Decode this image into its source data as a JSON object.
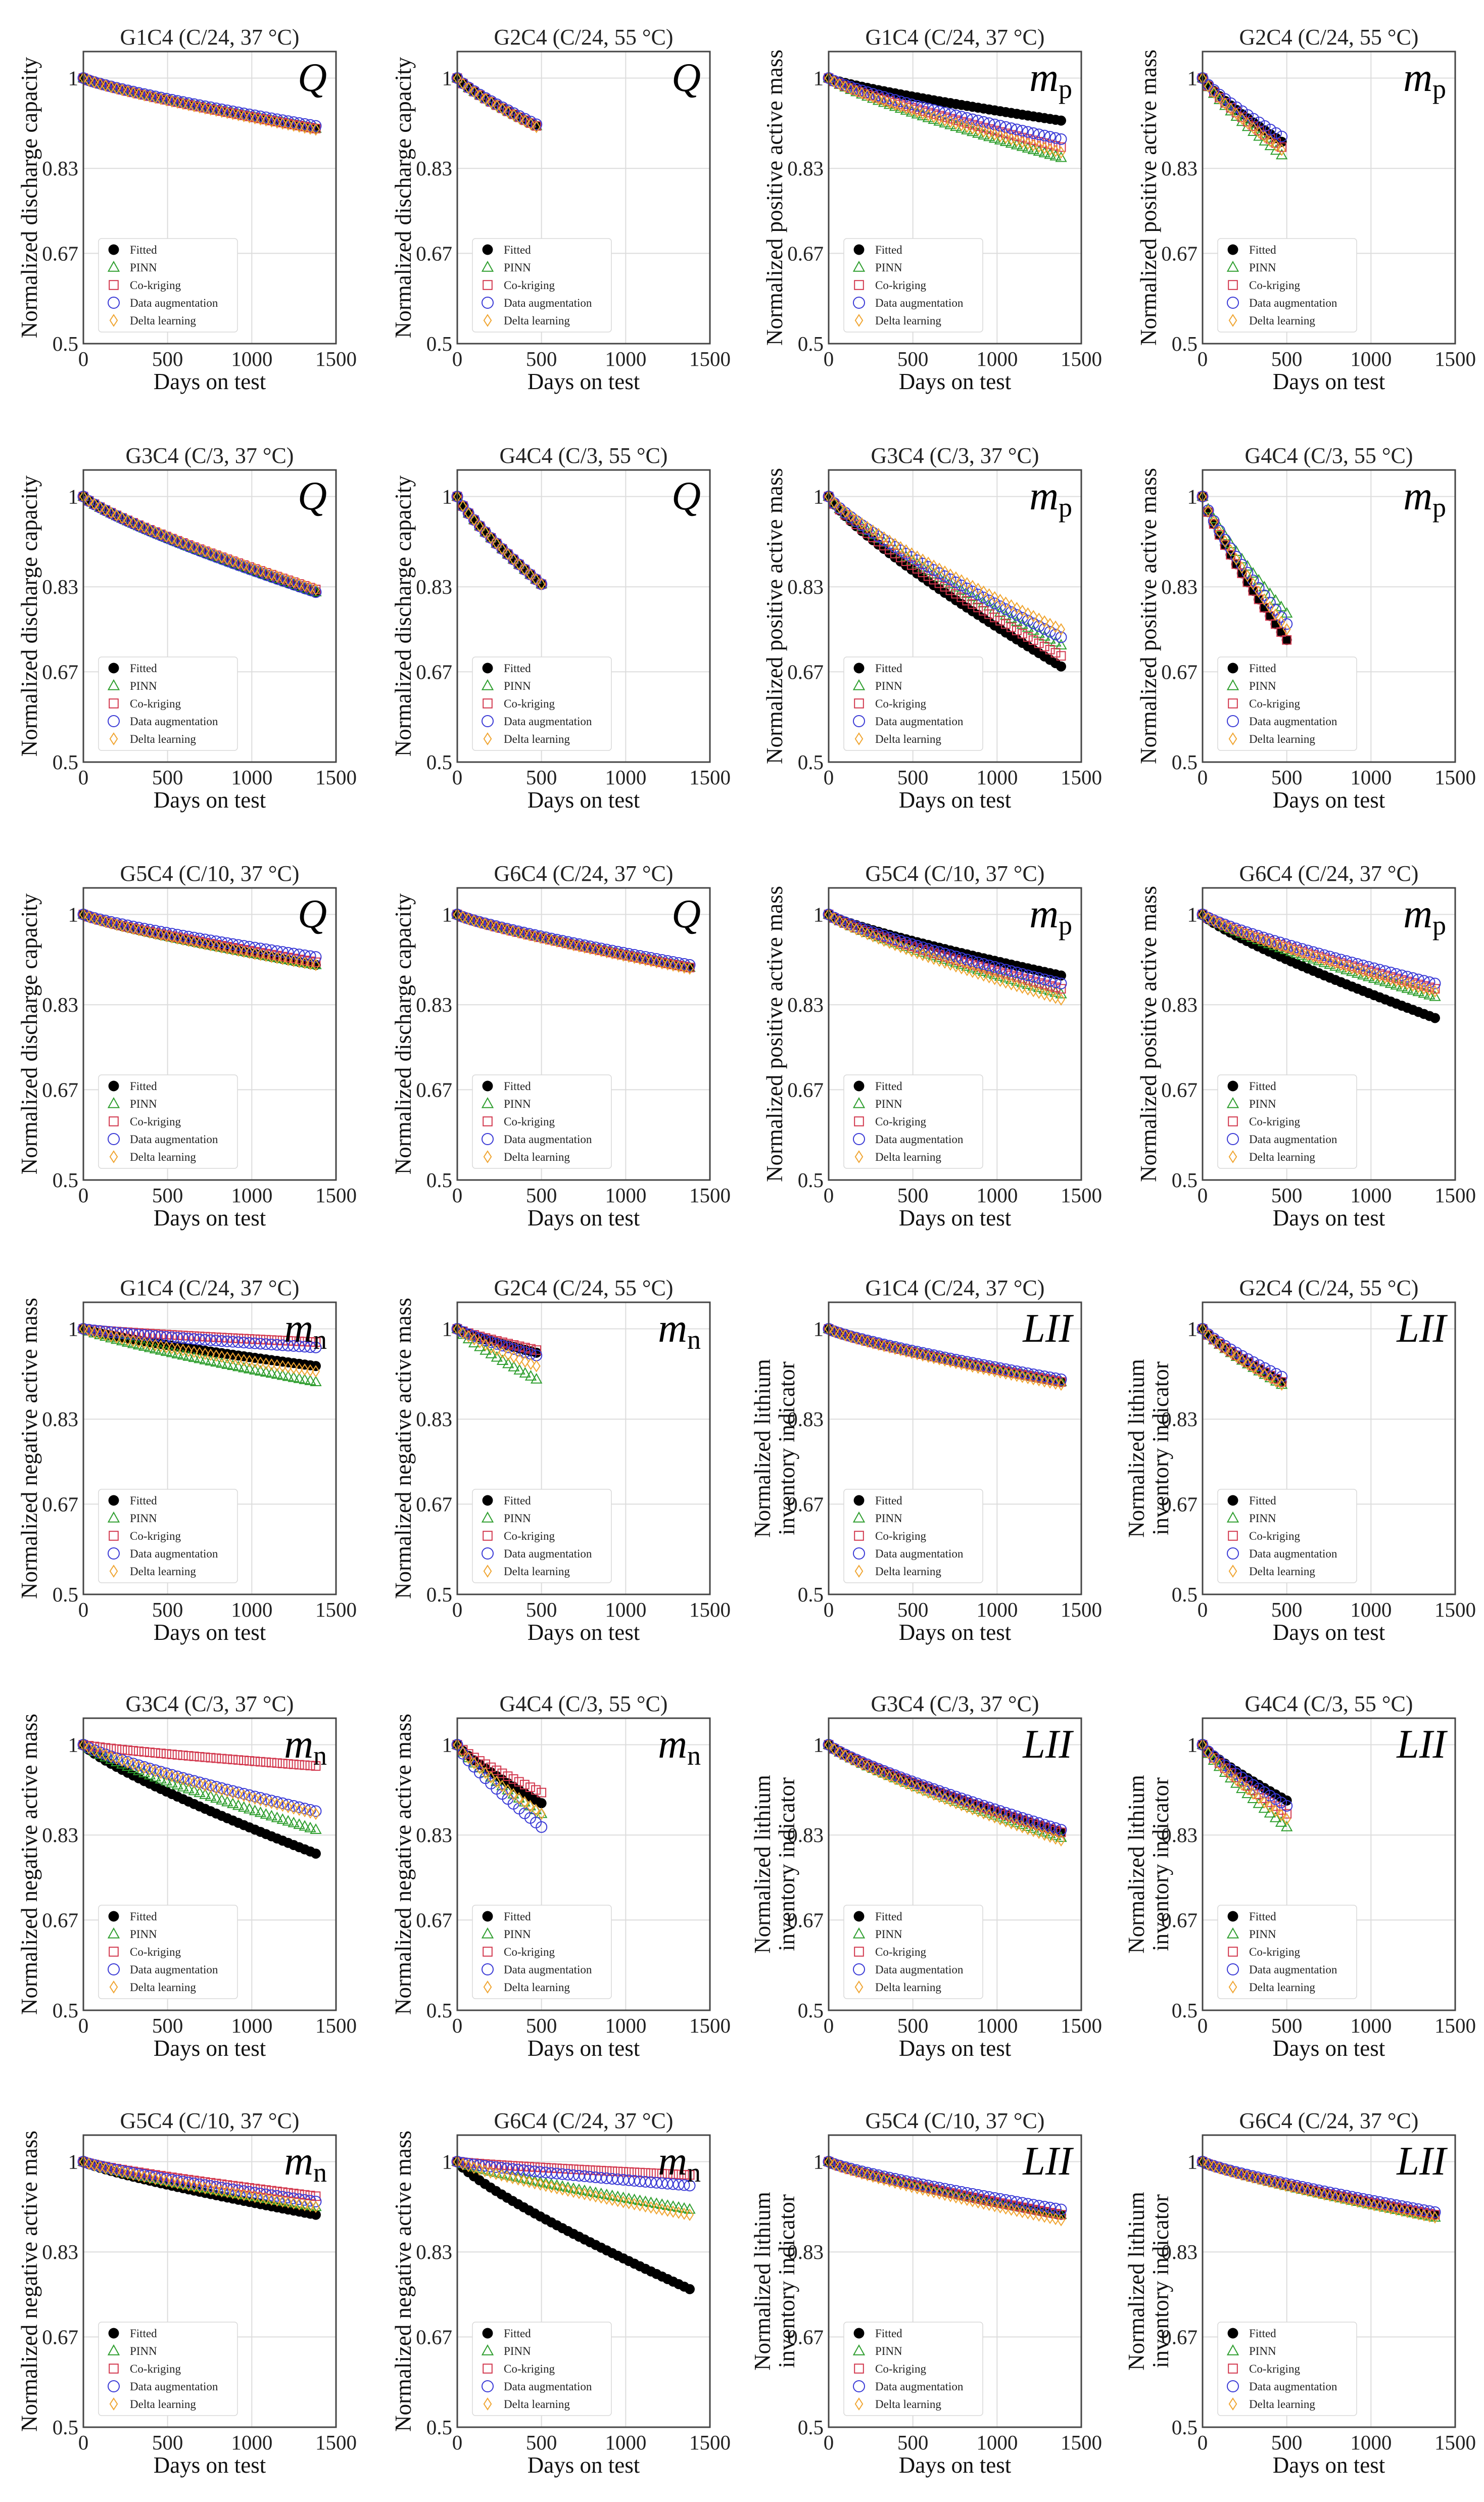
{
  "figure": {
    "x_axis_label": "Days on test",
    "x_ticks": [
      "0",
      "500",
      "1000",
      "1500"
    ],
    "y_ticks": [
      "0.5",
      "0.67",
      "0.83",
      "1"
    ],
    "legend": [
      "Fitted",
      "PINN",
      "Co-kriging",
      "Data augmentation",
      "Delta learning"
    ],
    "colors": {
      "Fitted": "#000000",
      "PINN": "#2e9e2e",
      "Co-kriging": "#d2374d",
      "Data augmentation": "#3a3ad6",
      "Delta learning": "#f0a531"
    }
  },
  "chart_data": [
    {
      "type": "scatter",
      "title": "G1C4 (C/24, 37 °C)",
      "quantity": "Q",
      "ylabel": [
        "Normalized discharge capacity"
      ],
      "xlabel": "Days on test",
      "xlim": [
        0,
        1500
      ],
      "ylim": [
        0.5,
        1.05
      ],
      "x_end": 1380,
      "y_end": {
        "Fitted": 0.905,
        "PINN": 0.905,
        "Co-kriging": 0.905,
        "Data augmentation": 0.91,
        "Delta learning": 0.903
      }
    },
    {
      "type": "scatter",
      "title": "G2C4 (C/24, 55 °C)",
      "quantity": "Q",
      "ylabel": [
        "Normalized discharge capacity"
      ],
      "xlabel": "Days on test",
      "xlim": [
        0,
        1500
      ],
      "ylim": [
        0.5,
        1.05
      ],
      "x_end": 470,
      "y_end": {
        "Fitted": 0.91,
        "PINN": 0.91,
        "Co-kriging": 0.91,
        "Data augmentation": 0.913,
        "Delta learning": 0.908
      }
    },
    {
      "type": "scatter",
      "title": "G1C4 (C/24, 37 °C)",
      "quantity": "m_p",
      "ylabel": [
        "Normalized positive active mass"
      ],
      "xlabel": "Days on test",
      "xlim": [
        0,
        1500
      ],
      "ylim": [
        0.5,
        1.05
      ],
      "x_end": 1380,
      "y_end": {
        "Fitted": 0.92,
        "PINN": 0.85,
        "Co-kriging": 0.87,
        "Data augmentation": 0.885,
        "Delta learning": 0.86
      }
    },
    {
      "type": "scatter",
      "title": "G2C4 (C/24, 55 °C)",
      "quantity": "m_p",
      "ylabel": [
        "Normalized positive active mass"
      ],
      "xlabel": "Days on test",
      "xlim": [
        0,
        1500
      ],
      "ylim": [
        0.5,
        1.05
      ],
      "x_end": 470,
      "y_end": {
        "Fitted": 0.88,
        "PINN": 0.855,
        "Co-kriging": 0.87,
        "Data augmentation": 0.89,
        "Delta learning": 0.865
      }
    },
    {
      "type": "scatter",
      "title": "G3C4 (C/3, 37 °C)",
      "quantity": "Q",
      "ylabel": [
        "Normalized discharge capacity"
      ],
      "xlabel": "Days on test",
      "xlim": [
        0,
        1500
      ],
      "ylim": [
        0.5,
        1.05
      ],
      "x_end": 1380,
      "y_end": {
        "Fitted": 0.82,
        "PINN": 0.82,
        "Co-kriging": 0.825,
        "Data augmentation": 0.82,
        "Delta learning": 0.825
      }
    },
    {
      "type": "scatter",
      "title": "G4C4 (C/3, 55 °C)",
      "quantity": "Q",
      "ylabel": [
        "Normalized discharge capacity"
      ],
      "xlabel": "Days on test",
      "xlim": [
        0,
        1500
      ],
      "ylim": [
        0.5,
        1.05
      ],
      "x_end": 500,
      "y_end": {
        "Fitted": 0.835,
        "PINN": 0.835,
        "Co-kriging": 0.835,
        "Data augmentation": 0.835,
        "Delta learning": 0.835
      }
    },
    {
      "type": "scatter",
      "title": "G3C4 (C/3, 37 °C)",
      "quantity": "m_p",
      "ylabel": [
        "Normalized positive active mass"
      ],
      "xlabel": "Days on test",
      "xlim": [
        0,
        1500
      ],
      "ylim": [
        0.5,
        1.05
      ],
      "x_end": 1380,
      "y_end": {
        "Fitted": 0.68,
        "PINN": 0.72,
        "Co-kriging": 0.7,
        "Data augmentation": 0.735,
        "Delta learning": 0.75
      }
    },
    {
      "type": "scatter",
      "title": "G4C4 (C/3, 55 °C)",
      "quantity": "m_p",
      "ylabel": [
        "Normalized positive active mass"
      ],
      "xlabel": "Days on test",
      "xlim": [
        0,
        1500
      ],
      "ylim": [
        0.5,
        1.05
      ],
      "x_end": 500,
      "y_end": {
        "Fitted": 0.73,
        "PINN": 0.78,
        "Co-kriging": 0.73,
        "Data augmentation": 0.76,
        "Delta learning": 0.75
      }
    },
    {
      "type": "scatter",
      "title": "G5C4 (C/10, 37 °C)",
      "quantity": "Q",
      "ylabel": [
        "Normalized discharge capacity"
      ],
      "xlabel": "Days on test",
      "xlim": [
        0,
        1500
      ],
      "ylim": [
        0.5,
        1.05
      ],
      "x_end": 1380,
      "y_end": {
        "Fitted": 0.905,
        "PINN": 0.905,
        "Co-kriging": 0.91,
        "Data augmentation": 0.92,
        "Delta learning": 0.905
      }
    },
    {
      "type": "scatter",
      "title": "G6C4 (C/24, 37 °C)",
      "quantity": "Q",
      "ylabel": [
        "Normalized discharge capacity"
      ],
      "xlabel": "Days on test",
      "xlim": [
        0,
        1500
      ],
      "ylim": [
        0.5,
        1.05
      ],
      "x_end": 1380,
      "y_end": {
        "Fitted": 0.9,
        "PINN": 0.9,
        "Co-kriging": 0.9,
        "Data augmentation": 0.905,
        "Delta learning": 0.898
      }
    },
    {
      "type": "scatter",
      "title": "G5C4 (C/10, 37 °C)",
      "quantity": "m_p",
      "ylabel": [
        "Normalized positive active mass"
      ],
      "xlabel": "Days on test",
      "xlim": [
        0,
        1500
      ],
      "ylim": [
        0.5,
        1.05
      ],
      "x_end": 1380,
      "y_end": {
        "Fitted": 0.885,
        "PINN": 0.85,
        "Co-kriging": 0.86,
        "Data augmentation": 0.87,
        "Delta learning": 0.84
      }
    },
    {
      "type": "scatter",
      "title": "G6C4 (C/24, 37 °C)",
      "quantity": "m_p",
      "ylabel": [
        "Normalized positive active mass"
      ],
      "xlabel": "Days on test",
      "xlim": [
        0,
        1500
      ],
      "ylim": [
        0.5,
        1.05
      ],
      "x_end": 1380,
      "y_end": {
        "Fitted": 0.805,
        "PINN": 0.845,
        "Co-kriging": 0.86,
        "Data augmentation": 0.87,
        "Delta learning": 0.855
      }
    },
    {
      "type": "scatter",
      "title": "G1C4 (C/24, 37 °C)",
      "quantity": "m_n",
      "ylabel": [
        "Normalized negative active mass"
      ],
      "xlabel": "Days on test",
      "xlim": [
        0,
        1500
      ],
      "ylim": [
        0.5,
        1.05
      ],
      "x_end": 1380,
      "y_end": {
        "Fitted": 0.93,
        "PINN": 0.9,
        "Co-kriging": 0.975,
        "Data augmentation": 0.965,
        "Delta learning": 0.92
      }
    },
    {
      "type": "scatter",
      "title": "G2C4 (C/24, 55 °C)",
      "quantity": "m_n",
      "ylabel": [
        "Normalized negative active mass"
      ],
      "xlabel": "Days on test",
      "xlim": [
        0,
        1500
      ],
      "ylim": [
        0.5,
        1.05
      ],
      "x_end": 470,
      "y_end": {
        "Fitted": 0.955,
        "PINN": 0.905,
        "Co-kriging": 0.96,
        "Data augmentation": 0.95,
        "Delta learning": 0.93
      }
    },
    {
      "type": "scatter",
      "title": "G1C4 (C/24, 37 °C)",
      "quantity": "LII",
      "ylabel": [
        "Normalized lithium",
        "inventory indicator"
      ],
      "xlabel": "Days on test",
      "xlim": [
        0,
        1500
      ],
      "ylim": [
        0.5,
        1.05
      ],
      "x_end": 1380,
      "y_end": {
        "Fitted": 0.9,
        "PINN": 0.9,
        "Co-kriging": 0.9,
        "Data augmentation": 0.905,
        "Delta learning": 0.895
      }
    },
    {
      "type": "scatter",
      "title": "G2C4 (C/24, 55 °C)",
      "quantity": "LII",
      "ylabel": [
        "Normalized lithium",
        "inventory indicator"
      ],
      "xlabel": "Days on test",
      "xlim": [
        0,
        1500
      ],
      "ylim": [
        0.5,
        1.05
      ],
      "x_end": 470,
      "y_end": {
        "Fitted": 0.9,
        "PINN": 0.895,
        "Co-kriging": 0.9,
        "Data augmentation": 0.91,
        "Delta learning": 0.895
      }
    },
    {
      "type": "scatter",
      "title": "G3C4 (C/3, 37 °C)",
      "quantity": "m_n",
      "ylabel": [
        "Normalized negative active mass"
      ],
      "xlabel": "Days on test",
      "xlim": [
        0,
        1500
      ],
      "ylim": [
        0.5,
        1.05
      ],
      "x_end": 1380,
      "y_end": {
        "Fitted": 0.795,
        "PINN": 0.84,
        "Co-kriging": 0.96,
        "Data augmentation": 0.875,
        "Delta learning": 0.87
      }
    },
    {
      "type": "scatter",
      "title": "G4C4 (C/3, 55 °C)",
      "quantity": "m_n",
      "ylabel": [
        "Normalized negative active mass"
      ],
      "xlabel": "Days on test",
      "xlim": [
        0,
        1500
      ],
      "ylim": [
        0.5,
        1.05
      ],
      "x_end": 500,
      "y_end": {
        "Fitted": 0.89,
        "PINN": 0.87,
        "Co-kriging": 0.91,
        "Data augmentation": 0.845,
        "Delta learning": 0.87
      }
    },
    {
      "type": "scatter",
      "title": "G3C4 (C/3, 37 °C)",
      "quantity": "LII",
      "ylabel": [
        "Normalized lithium",
        "inventory indicator"
      ],
      "xlabel": "Days on test",
      "xlim": [
        0,
        1500
      ],
      "ylim": [
        0.5,
        1.05
      ],
      "x_end": 1380,
      "y_end": {
        "Fitted": 0.835,
        "PINN": 0.825,
        "Co-kriging": 0.835,
        "Data augmentation": 0.84,
        "Delta learning": 0.82
      }
    },
    {
      "type": "scatter",
      "title": "G4C4 (C/3, 55 °C)",
      "quantity": "LII",
      "ylabel": [
        "Normalized lithium",
        "inventory indicator"
      ],
      "xlabel": "Days on test",
      "xlim": [
        0,
        1500
      ],
      "ylim": [
        0.5,
        1.05
      ],
      "x_end": 500,
      "y_end": {
        "Fitted": 0.895,
        "PINN": 0.845,
        "Co-kriging": 0.87,
        "Data augmentation": 0.885,
        "Delta learning": 0.86
      }
    },
    {
      "type": "scatter",
      "title": "G5C4 (C/10, 37 °C)",
      "quantity": "m_n",
      "ylabel": [
        "Normalized negative active mass"
      ],
      "xlabel": "Days on test",
      "xlim": [
        0,
        1500
      ],
      "ylim": [
        0.5,
        1.05
      ],
      "x_end": 1380,
      "y_end": {
        "Fitted": 0.9,
        "PINN": 0.915,
        "Co-kriging": 0.935,
        "Data augmentation": 0.925,
        "Delta learning": 0.915
      }
    },
    {
      "type": "scatter",
      "title": "G6C4 (C/24, 37 °C)",
      "quantity": "m_n",
      "ylabel": [
        "Normalized negative active mass"
      ],
      "xlabel": "Days on test",
      "xlim": [
        0,
        1500
      ],
      "ylim": [
        0.5,
        1.05
      ],
      "x_end": 1380,
      "y_end": {
        "Fitted": 0.76,
        "PINN": 0.91,
        "Co-kriging": 0.975,
        "Data augmentation": 0.955,
        "Delta learning": 0.9
      }
    },
    {
      "type": "scatter",
      "title": "G5C4 (C/10, 37 °C)",
      "quantity": "LII",
      "ylabel": [
        "Normalized lithium",
        "inventory indicator"
      ],
      "xlabel": "Days on test",
      "xlim": [
        0,
        1500
      ],
      "ylim": [
        0.5,
        1.05
      ],
      "x_end": 1380,
      "y_end": {
        "Fitted": 0.9,
        "PINN": 0.9,
        "Co-kriging": 0.9,
        "Data augmentation": 0.91,
        "Delta learning": 0.89
      }
    },
    {
      "type": "scatter",
      "title": "G6C4 (C/24, 37 °C)",
      "quantity": "LII",
      "ylabel": [
        "Normalized lithium",
        "inventory indicator"
      ],
      "xlabel": "Days on test",
      "xlim": [
        0,
        1500
      ],
      "ylim": [
        0.5,
        1.05
      ],
      "x_end": 1380,
      "y_end": {
        "Fitted": 0.9,
        "PINN": 0.895,
        "Co-kriging": 0.9,
        "Data augmentation": 0.905,
        "Delta learning": 0.895
      }
    }
  ]
}
